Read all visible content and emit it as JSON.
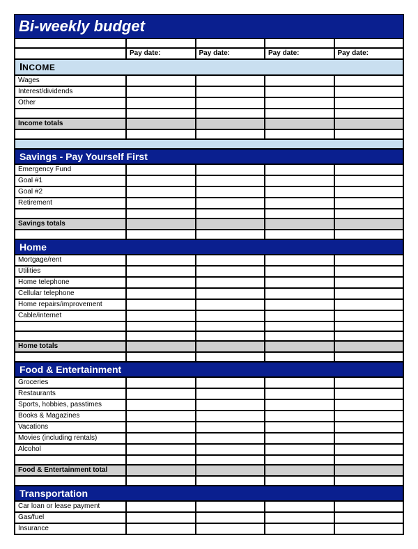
{
  "colors": {
    "navy": "#0a1f8f",
    "lightblue": "#c9dff0",
    "grey": "#d0d0d0",
    "white": "#ffffff",
    "black": "#000000"
  },
  "title": "Bi-weekly  budget",
  "paydate_label": "Pay date:",
  "num_columns": 4,
  "sections": [
    {
      "key": "income",
      "header": "Income",
      "header_style": "smallcaps",
      "header_bg": "lightblue",
      "header_fg": "black",
      "rows": [
        "Wages",
        "Interest/dividends",
        "Other"
      ],
      "blank_before_total": 1,
      "total_label": "Income totals",
      "total_bg": "grey",
      "trailing_blank": 1,
      "trailing_lightblue": 1
    },
    {
      "key": "savings",
      "header": "Savings - Pay Yourself First",
      "header_style": "normal",
      "header_bg": "navy",
      "header_fg": "white",
      "rows": [
        "Emergency Fund",
        "Goal #1",
        "Goal #2",
        "Retirement"
      ],
      "blank_before_total": 1,
      "total_label": "Savings totals",
      "total_bg": "grey",
      "trailing_blank": 1,
      "trailing_lightblue": 0
    },
    {
      "key": "home",
      "header": "Home",
      "header_style": "normal",
      "header_bg": "navy",
      "header_fg": "white",
      "rows": [
        "Mortgage/rent",
        "Utilities",
        "Home telephone",
        "Cellular telephone",
        "Home repairs/improvement",
        "Cable/internet"
      ],
      "blank_before_total": 2,
      "total_label": "Home totals",
      "total_bg": "grey",
      "trailing_blank": 1,
      "trailing_lightblue": 0
    },
    {
      "key": "food",
      "header": "Food & Entertainment",
      "header_style": "normal",
      "header_bg": "navy",
      "header_fg": "white",
      "rows": [
        "Groceries",
        "Restaurants",
        "Sports, hobbies, passtimes",
        "Books & Magazines",
        "Vacations",
        "Movies (including rentals)",
        "Alcohol"
      ],
      "blank_before_total": 1,
      "total_label": "Food & Entertainment total",
      "total_bg": "grey",
      "trailing_blank": 1,
      "trailing_lightblue": 0
    },
    {
      "key": "transport",
      "header": "Transportation",
      "header_style": "normal",
      "header_bg": "navy",
      "header_fg": "white",
      "rows": [
        "Car loan or lease payment",
        "Gas/fuel",
        "Insurance"
      ],
      "blank_before_total": 0,
      "total_label": null,
      "total_bg": null,
      "trailing_blank": 0,
      "trailing_lightblue": 0
    }
  ]
}
